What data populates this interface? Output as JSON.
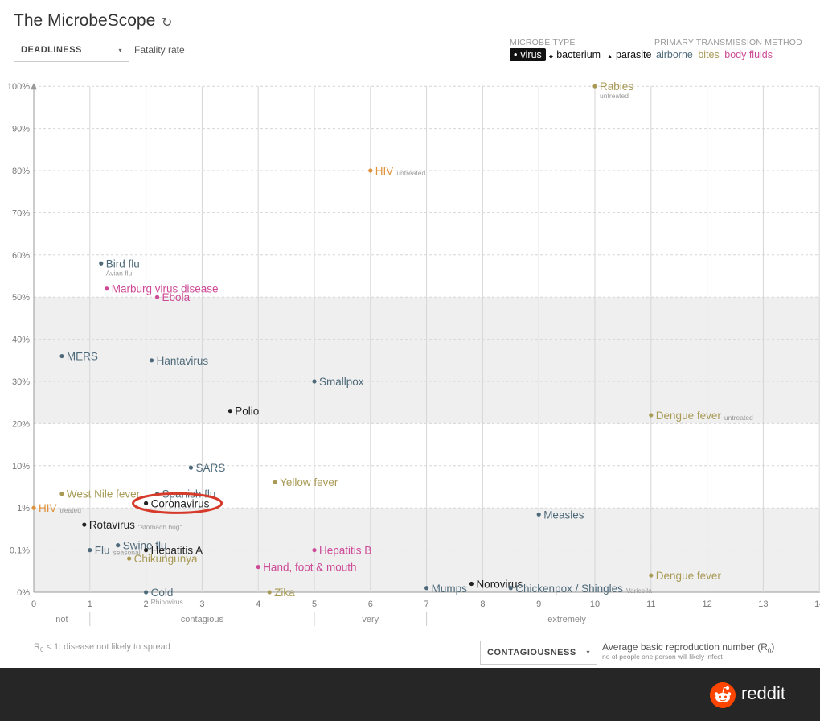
{
  "header": {
    "title": "The MicrobeScope",
    "refresh_icon": "↻"
  },
  "controls": {
    "y_select": "DEADLINESS",
    "y_desc": "Fatality rate",
    "x_select": "CONTAGIOUSNESS",
    "x_desc_main": "Average basic reproduction number (R",
    "x_desc_sub0": "0",
    "x_desc_close": ")",
    "x_desc_sub": "no of people one person will likely infect",
    "caret": "▾"
  },
  "legend": {
    "type_title": "MICROBE TYPE",
    "types": [
      "virus",
      "bacterium",
      "parasite"
    ],
    "type_markers": [
      "•",
      "◆",
      "▲"
    ],
    "transmission_title": "PRIMARY TRANSMISSION METHOD",
    "transmissions": [
      "airborne",
      "bites",
      "body fluids"
    ]
  },
  "colors": {
    "airborne": "#4e6a7a",
    "bites": "#a89a55",
    "body_fluids": "#cd4a96",
    "orange": "#e0913a",
    "dark": "#222222",
    "band": "#efefef",
    "annotation": "#d63a2a"
  },
  "chart_data": {
    "type": "scatter",
    "xlabel": "CONTAGIOUSNESS",
    "ylabel": "DEADLINESS",
    "xlim": [
      0,
      14
    ],
    "x_ticks": [
      "0",
      "1",
      "2",
      "3",
      "4",
      "5",
      "6",
      "7",
      "8",
      "9",
      "10",
      "11",
      "12",
      "13",
      "14"
    ],
    "y_ticks": [
      "0%",
      "0.1%",
      "1%",
      "10%",
      "20%",
      "30%",
      "40%",
      "50%",
      "60%",
      "70%",
      "80%",
      "90%",
      "100%"
    ],
    "x_categories": [
      "not",
      "contagious",
      "very",
      "extremely"
    ],
    "points": [
      {
        "name": "Rabies",
        "sub": "untreated",
        "x": 10,
        "y": "100%",
        "group": "bites"
      },
      {
        "name": "HIV",
        "sub": "untreated",
        "x": 6,
        "y": "80%",
        "group": "orange"
      },
      {
        "name": "Bird flu",
        "sub": "Avian flu",
        "x": 1.2,
        "y": "58%",
        "group": "airborne"
      },
      {
        "name": "Marburg virus disease",
        "sub": "",
        "x": 1.3,
        "y": "52%",
        "group": "body_fluids"
      },
      {
        "name": "Ebola",
        "sub": "",
        "x": 2.2,
        "y": "50%",
        "group": "body_fluids"
      },
      {
        "name": "MERS",
        "sub": "",
        "x": 0.5,
        "y": "36%",
        "group": "airborne"
      },
      {
        "name": "Hantavirus",
        "sub": "",
        "x": 2.1,
        "y": "35%",
        "group": "airborne"
      },
      {
        "name": "Smallpox",
        "sub": "",
        "x": 5,
        "y": "30%",
        "group": "airborne"
      },
      {
        "name": "Polio",
        "sub": "",
        "x": 3.5,
        "y": "23%",
        "group": "dark"
      },
      {
        "name": "Dengue fever",
        "sub": "untreated",
        "x": 11,
        "y": "22%",
        "group": "bites"
      },
      {
        "name": "SARS",
        "sub": "",
        "x": 2.8,
        "y": "9.6%",
        "group": "airborne"
      },
      {
        "name": "Yellow fever",
        "sub": "",
        "x": 4.3,
        "y": "6.5%",
        "group": "bites"
      },
      {
        "name": "West Nile fever",
        "sub": "",
        "x": 0.5,
        "y": "4%",
        "group": "bites"
      },
      {
        "name": "Spanish flu",
        "sub": "",
        "x": 2.2,
        "y": "4%",
        "group": "airborne"
      },
      {
        "name": "Coronavirus",
        "sub": "",
        "x": 2,
        "y": "2%",
        "group": "dark"
      },
      {
        "name": "HIV",
        "sub": "treated",
        "x": 0,
        "y": "1%",
        "group": "orange"
      },
      {
        "name": "Measles",
        "sub": "",
        "x": 9,
        "y": "0.7%",
        "group": "airborne"
      },
      {
        "name": "Rotavirus",
        "sub": "\"stomach bug\"",
        "x": 0.9,
        "y": "0.4%",
        "group": "dark"
      },
      {
        "name": "Swine flu",
        "sub": "",
        "x": 1.5,
        "y": "0.13%",
        "group": "airborne"
      },
      {
        "name": "Flu",
        "sub": "seasonal",
        "x": 1,
        "y": "0.1%",
        "group": "airborne"
      },
      {
        "name": "Hepatitis A",
        "sub": "",
        "x": 2,
        "y": "0.1%",
        "group": "dark"
      },
      {
        "name": "Chikungunya",
        "sub": "",
        "x": 1.7,
        "y": "0.08%",
        "group": "bites"
      },
      {
        "name": "Hepatitis B",
        "sub": "",
        "x": 5,
        "y": "0.1%",
        "group": "body_fluids"
      },
      {
        "name": "Hand, foot & mouth",
        "sub": "",
        "x": 4,
        "y": "0.06%",
        "group": "body_fluids"
      },
      {
        "name": "Dengue fever",
        "sub": "",
        "x": 11,
        "y": "0.04%",
        "group": "bites"
      },
      {
        "name": "Norovirus",
        "sub": "",
        "x": 7.8,
        "y": "0.02%",
        "group": "dark"
      },
      {
        "name": "Mumps",
        "sub": "",
        "x": 7,
        "y": "0.01%",
        "group": "airborne"
      },
      {
        "name": "Chickenpox / Shingles",
        "sub": "Varicella",
        "x": 8.5,
        "y": "0.01%",
        "group": "airborne"
      },
      {
        "name": "Cold",
        "sub": "Rhinovirus",
        "x": 2,
        "y": "0%",
        "group": "airborne"
      },
      {
        "name": "Zika",
        "sub": "",
        "x": 4.2,
        "y": "0%",
        "group": "bites"
      }
    ],
    "highlight": "Coronavirus"
  },
  "notes": {
    "r0_prefix": "R",
    "r0_sub": "0",
    "r0_suffix": " < 1: disease not likely to spread"
  },
  "footer": {
    "brand": "reddit"
  }
}
